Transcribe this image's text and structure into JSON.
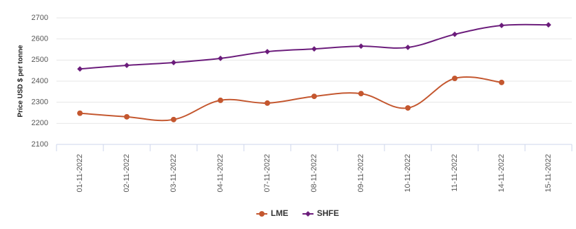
{
  "chart_data": {
    "type": "line",
    "y_label": "Price USD $ per tonne",
    "categories": [
      "01-11-2022",
      "02-11-2022",
      "03-11-2022",
      "04-11-2022",
      "07-11-2022",
      "08-11-2022",
      "09-11-2022",
      "10-11-2022",
      "11-11-2022",
      "14-11-2022",
      "15-11-2022"
    ],
    "series": [
      {
        "name": "LME",
        "color": "#c4572f",
        "marker": "circle",
        "values": [
          2248,
          2231,
          2218,
          2309,
          2296,
          2328,
          2341,
          2273,
          2413,
          2394,
          null
        ]
      },
      {
        "name": "SHFE",
        "color": "#6b1c7b",
        "marker": "diamond",
        "values": [
          2458,
          2475,
          2488,
          2508,
          2540,
          2553,
          2566,
          2560,
          2622,
          2664,
          2667
        ]
      }
    ],
    "ylim": [
      2100,
      2700
    ],
    "yticks": [
      2100,
      2200,
      2300,
      2400,
      2500,
      2600,
      2700
    ],
    "grid": true,
    "legend": "bottom"
  }
}
